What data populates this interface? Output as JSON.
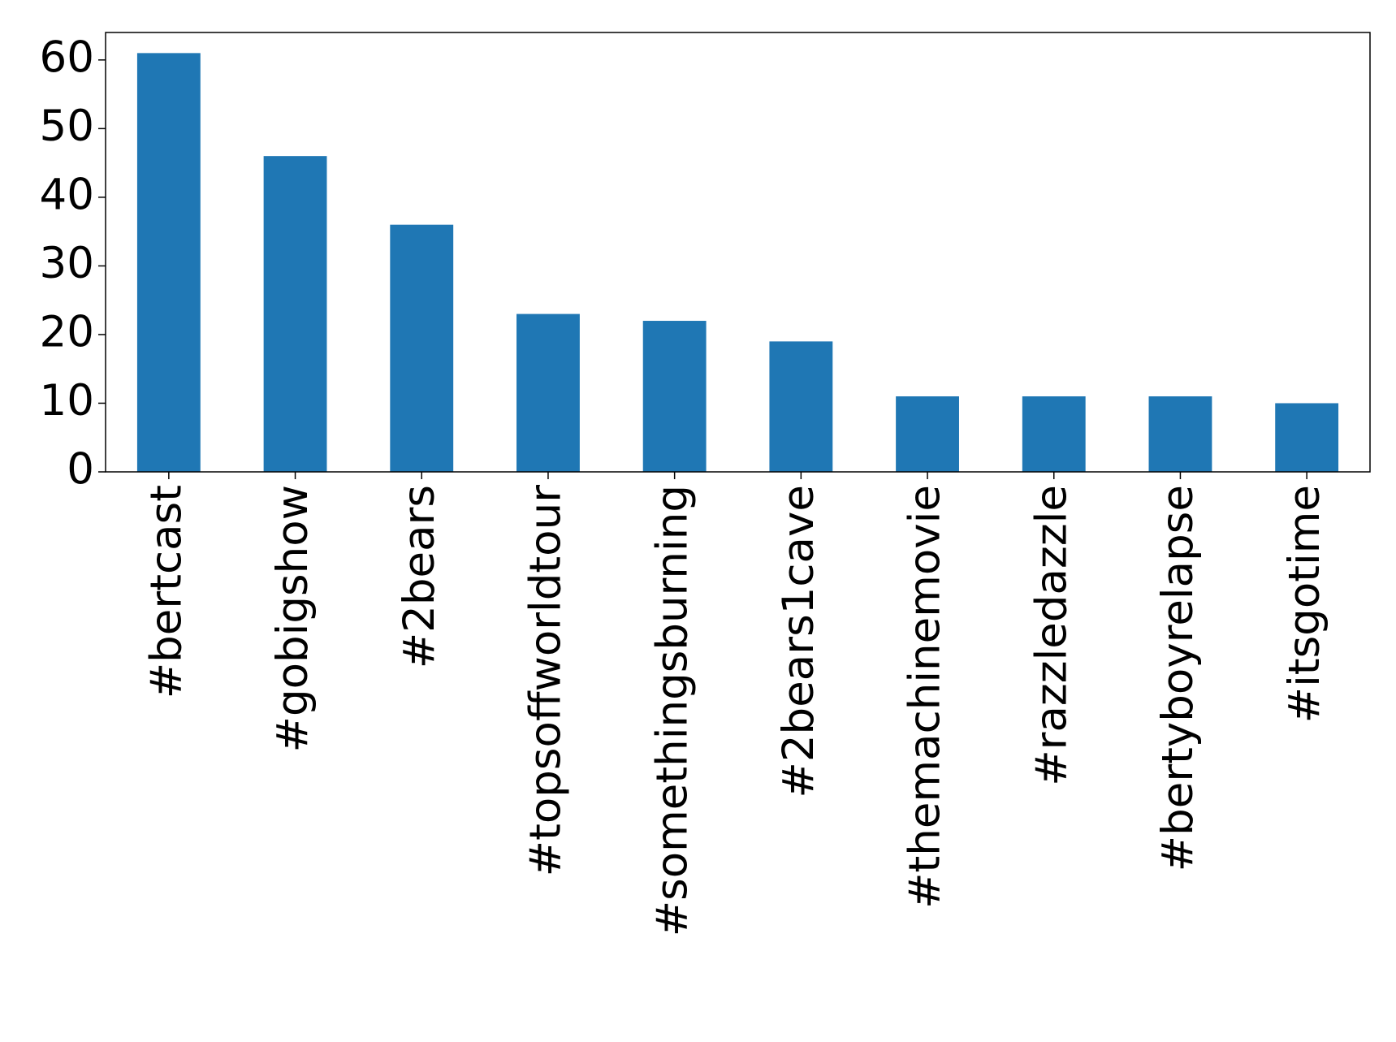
{
  "chart_data": {
    "type": "bar",
    "categories": [
      "#bertcast",
      "#gobigshow",
      "#2bears",
      "#topsoffworldtour",
      "#somethingsburning",
      "#2bears1cave",
      "#themachinemovie",
      "#razzledazzle",
      "#bertyboyrelapse",
      "#itsgotime"
    ],
    "values": [
      61,
      46,
      36,
      23,
      22,
      19,
      11,
      11,
      11,
      10
    ],
    "color": "#1f77b4",
    "ylim": [
      0,
      64
    ],
    "yticks": [
      0,
      10,
      20,
      30,
      40,
      50,
      60
    ],
    "grid": false
  }
}
